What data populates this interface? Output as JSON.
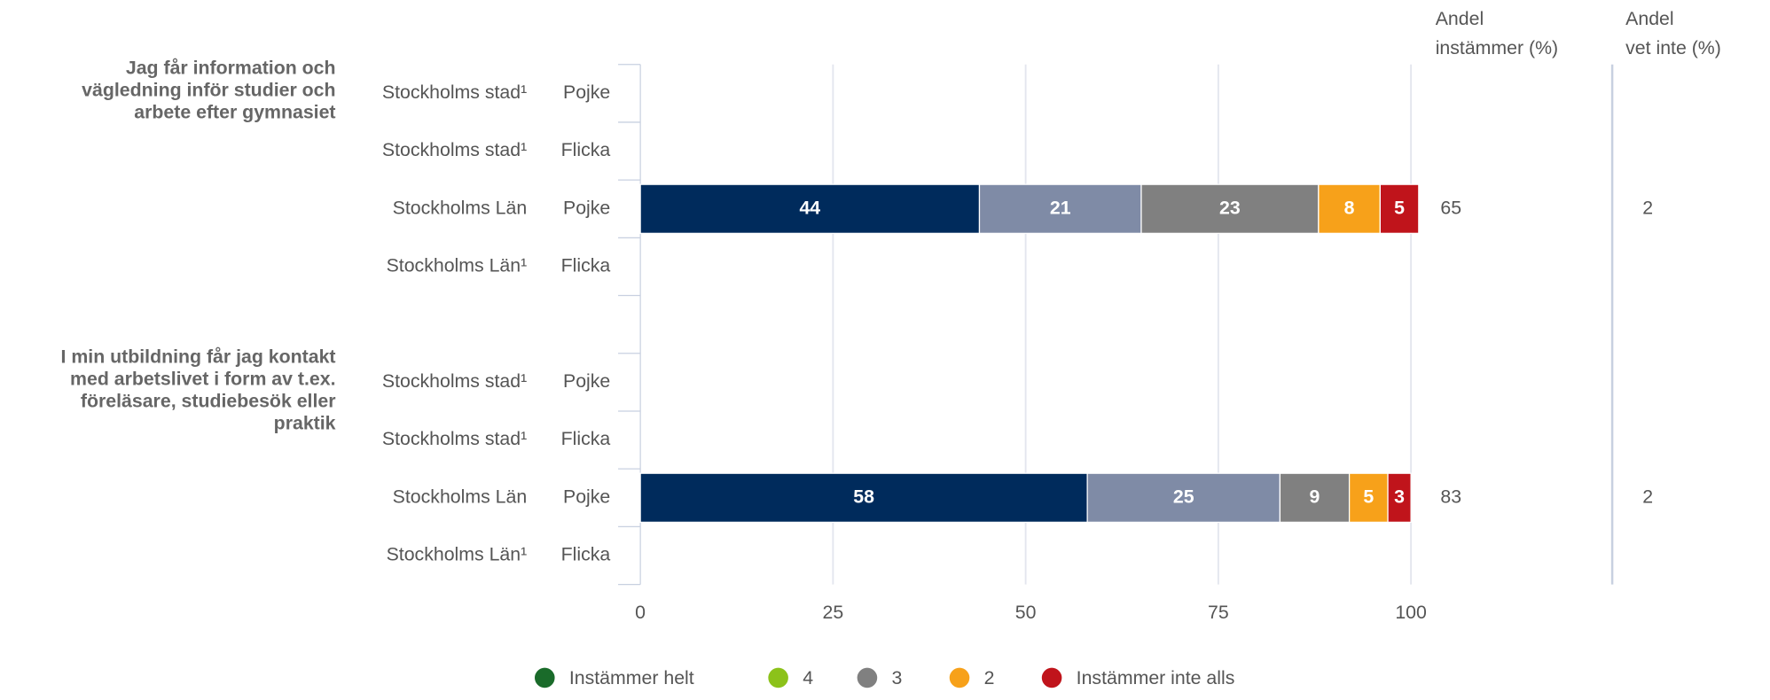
{
  "chart_data": {
    "type": "stacked_bar_horizontal",
    "column_headers": [
      [
        "Andel",
        "instämmer (%)"
      ],
      [
        "Andel",
        "vet inte (%)"
      ]
    ],
    "groups": [
      {
        "lines": [
          "Jag får information och",
          "vägledning inför studier och",
          "arbete efter gymnasiet"
        ],
        "rows": [
          0,
          1,
          2,
          3
        ]
      },
      {
        "lines": [
          "I min utbildning får jag kontakt",
          "med arbetslivet i form av t.ex.",
          "föreläsare, studiebesök eller",
          "praktik"
        ],
        "rows": [
          4,
          5,
          6,
          7
        ]
      }
    ],
    "regions": [
      "Stockholms stad¹",
      "Stockholms stad¹",
      "Stockholms Län",
      "Stockholms Län¹",
      "Stockholms stad¹",
      "Stockholms stad¹",
      "Stockholms Län",
      "Stockholms Län¹"
    ],
    "genders": [
      "Pojke",
      "Flicka",
      "Pojke",
      "Flicka",
      "Pojke",
      "Flicka",
      "Pojke",
      "Flicka"
    ],
    "series": [
      {
        "name": "Instämmer helt",
        "color": "#002b5c",
        "legend_color": "#1a6b2a",
        "values": [
          null,
          null,
          44,
          null,
          null,
          null,
          58,
          null
        ]
      },
      {
        "name": "4",
        "color": "#7f8ba6",
        "legend_color": "#8cc21a",
        "values": [
          null,
          null,
          21,
          null,
          null,
          null,
          25,
          null
        ]
      },
      {
        "name": "3",
        "color": "#808080",
        "legend_color": "#808080",
        "values": [
          null,
          null,
          23,
          null,
          null,
          null,
          9,
          null
        ]
      },
      {
        "name": "2",
        "color": "#f7a11a",
        "legend_color": "#f7a11a",
        "values": [
          null,
          null,
          8,
          null,
          null,
          null,
          5,
          null
        ]
      },
      {
        "name": "Instämmer inte alls",
        "color": "#c0141b",
        "legend_color": "#c0141b",
        "values": [
          null,
          null,
          5,
          null,
          null,
          null,
          3,
          null
        ]
      }
    ],
    "share_agree": [
      null,
      null,
      65,
      null,
      null,
      null,
      83,
      null
    ],
    "share_dont_know": [
      null,
      null,
      2,
      null,
      null,
      null,
      2,
      null
    ],
    "xlim": [
      0,
      100
    ],
    "xticks": [
      0,
      25,
      50,
      75,
      100
    ],
    "grid": true
  }
}
